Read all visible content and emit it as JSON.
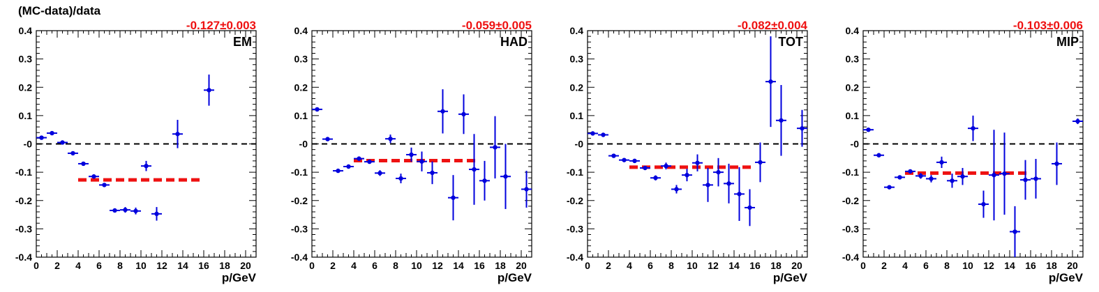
{
  "figure_title": "(MC-data)/data",
  "colors": {
    "data": "#0000dd",
    "fit": "#ee1111",
    "zero": "#000000",
    "fit_label": "#ee1111"
  },
  "chart_data": [
    {
      "type": "scatter",
      "label": "EM",
      "fit_text": "-0.127±0.003",
      "fit": {
        "value": -0.127,
        "x_range": [
          4,
          16
        ]
      },
      "xlabel": "p/GeV",
      "ylabel": "",
      "xlim": [
        0,
        21
      ],
      "ylim": [
        -0.4,
        0.4
      ],
      "x_ticks": [
        "0",
        "2",
        "4",
        "6",
        "8",
        "10",
        "12",
        "14",
        "16",
        "18",
        "20"
      ],
      "y_ticks": [
        "-0.4",
        "-0.3",
        "-0.2",
        "-0.1",
        "-0",
        "0.1",
        "0.2",
        "0.3",
        "0.4"
      ],
      "points": [
        {
          "x": 0.5,
          "y": 0.022,
          "err": 0.005
        },
        {
          "x": 1.5,
          "y": 0.038,
          "err": 0.005
        },
        {
          "x": 2.5,
          "y": 0.005,
          "err": 0.005
        },
        {
          "x": 3.5,
          "y": -0.033,
          "err": 0.005
        },
        {
          "x": 4.5,
          "y": -0.07,
          "err": 0.005
        },
        {
          "x": 5.5,
          "y": -0.115,
          "err": 0.006
        },
        {
          "x": 6.5,
          "y": -0.145,
          "err": 0.006
        },
        {
          "x": 7.5,
          "y": -0.235,
          "err": 0.007
        },
        {
          "x": 8.5,
          "y": -0.233,
          "err": 0.01
        },
        {
          "x": 9.5,
          "y": -0.237,
          "err": 0.012
        },
        {
          "x": 10.5,
          "y": -0.078,
          "err": 0.018
        },
        {
          "x": 11.5,
          "y": -0.247,
          "err": 0.024
        },
        {
          "x": 13.5,
          "y": 0.035,
          "err": 0.05
        },
        {
          "x": 16.5,
          "y": 0.19,
          "err": 0.055
        }
      ]
    },
    {
      "type": "scatter",
      "label": "HAD",
      "fit_text": "-0.059±0.005",
      "fit": {
        "value": -0.059,
        "x_range": [
          4,
          16
        ]
      },
      "xlabel": "p/GeV",
      "ylabel": "",
      "xlim": [
        0,
        21
      ],
      "ylim": [
        -0.4,
        0.4
      ],
      "x_ticks": [
        "0",
        "2",
        "4",
        "6",
        "8",
        "10",
        "12",
        "14",
        "16",
        "18",
        "20"
      ],
      "y_ticks": [
        "-0.4",
        "-0.3",
        "-0.2",
        "-0.1",
        "-0",
        "0.1",
        "0.2",
        "0.3",
        "0.4"
      ],
      "points": [
        {
          "x": 0.5,
          "y": 0.122,
          "err": 0.005
        },
        {
          "x": 1.5,
          "y": 0.017,
          "err": 0.005
        },
        {
          "x": 2.5,
          "y": -0.095,
          "err": 0.005
        },
        {
          "x": 3.5,
          "y": -0.08,
          "err": 0.005
        },
        {
          "x": 4.5,
          "y": -0.052,
          "err": 0.006
        },
        {
          "x": 5.5,
          "y": -0.063,
          "err": 0.007
        },
        {
          "x": 6.5,
          "y": -0.103,
          "err": 0.01
        },
        {
          "x": 7.5,
          "y": 0.018,
          "err": 0.015
        },
        {
          "x": 8.5,
          "y": -0.122,
          "err": 0.017
        },
        {
          "x": 9.5,
          "y": -0.038,
          "err": 0.025
        },
        {
          "x": 10.5,
          "y": -0.062,
          "err": 0.035
        },
        {
          "x": 11.5,
          "y": -0.102,
          "err": 0.04
        },
        {
          "x": 12.5,
          "y": 0.115,
          "err": 0.078
        },
        {
          "x": 13.5,
          "y": -0.19,
          "err": 0.08
        },
        {
          "x": 14.5,
          "y": 0.105,
          "err": 0.07
        },
        {
          "x": 15.5,
          "y": -0.09,
          "err": 0.125
        },
        {
          "x": 16.5,
          "y": -0.13,
          "err": 0.07
        },
        {
          "x": 17.5,
          "y": -0.012,
          "err": 0.11
        },
        {
          "x": 18.5,
          "y": -0.115,
          "err": 0.115
        },
        {
          "x": 20.5,
          "y": -0.16,
          "err": 0.065
        }
      ]
    },
    {
      "type": "scatter",
      "label": "TOT",
      "fit_text": "-0.082±0.004",
      "fit": {
        "value": -0.082,
        "x_range": [
          4,
          16
        ]
      },
      "xlabel": "p/GeV",
      "ylabel": "",
      "xlim": [
        0,
        21
      ],
      "ylim": [
        -0.4,
        0.4
      ],
      "x_ticks": [
        "0",
        "2",
        "4",
        "6",
        "8",
        "10",
        "12",
        "14",
        "16",
        "18",
        "20"
      ],
      "y_ticks": [
        "-0.4",
        "-0.3",
        "-0.2",
        "-0.1",
        "-0",
        "0.1",
        "0.2",
        "0.3",
        "0.4"
      ],
      "points": [
        {
          "x": 0.5,
          "y": 0.037,
          "err": 0.005
        },
        {
          "x": 1.5,
          "y": 0.032,
          "err": 0.005
        },
        {
          "x": 2.5,
          "y": -0.042,
          "err": 0.005
        },
        {
          "x": 3.5,
          "y": -0.057,
          "err": 0.005
        },
        {
          "x": 4.5,
          "y": -0.06,
          "err": 0.005
        },
        {
          "x": 5.5,
          "y": -0.085,
          "err": 0.006
        },
        {
          "x": 6.5,
          "y": -0.12,
          "err": 0.009
        },
        {
          "x": 7.5,
          "y": -0.078,
          "err": 0.012
        },
        {
          "x": 8.5,
          "y": -0.16,
          "err": 0.015
        },
        {
          "x": 9.5,
          "y": -0.11,
          "err": 0.022
        },
        {
          "x": 10.5,
          "y": -0.067,
          "err": 0.03
        },
        {
          "x": 11.5,
          "y": -0.145,
          "err": 0.06
        },
        {
          "x": 12.5,
          "y": -0.1,
          "err": 0.05
        },
        {
          "x": 13.5,
          "y": -0.14,
          "err": 0.07
        },
        {
          "x": 14.5,
          "y": -0.177,
          "err": 0.095
        },
        {
          "x": 15.5,
          "y": -0.225,
          "err": 0.065
        },
        {
          "x": 16.5,
          "y": -0.065,
          "err": 0.07
        },
        {
          "x": 17.5,
          "y": 0.22,
          "err": 0.16
        },
        {
          "x": 18.5,
          "y": 0.083,
          "err": 0.125
        },
        {
          "x": 20.5,
          "y": 0.055,
          "err": 0.065
        }
      ]
    },
    {
      "type": "scatter",
      "label": "MIP",
      "fit_text": "-0.103±0.006",
      "fit": {
        "value": -0.103,
        "x_range": [
          4,
          16
        ]
      },
      "xlabel": "p/GeV",
      "ylabel": "",
      "xlim": [
        0,
        21
      ],
      "ylim": [
        -0.4,
        0.4
      ],
      "x_ticks": [
        "0",
        "2",
        "4",
        "6",
        "8",
        "10",
        "12",
        "14",
        "16",
        "18",
        "20"
      ],
      "y_ticks": [
        "-0.4",
        "-0.3",
        "-0.2",
        "-0.1",
        "-0",
        "0.1",
        "0.2",
        "0.3",
        "0.4"
      ],
      "points": [
        {
          "x": 0.5,
          "y": 0.05,
          "err": 0.005
        },
        {
          "x": 1.5,
          "y": -0.04,
          "err": 0.005
        },
        {
          "x": 2.5,
          "y": -0.153,
          "err": 0.005
        },
        {
          "x": 3.5,
          "y": -0.118,
          "err": 0.005
        },
        {
          "x": 4.5,
          "y": -0.097,
          "err": 0.007
        },
        {
          "x": 5.5,
          "y": -0.113,
          "err": 0.01
        },
        {
          "x": 6.5,
          "y": -0.123,
          "err": 0.013
        },
        {
          "x": 7.5,
          "y": -0.065,
          "err": 0.02
        },
        {
          "x": 8.5,
          "y": -0.13,
          "err": 0.025
        },
        {
          "x": 9.5,
          "y": -0.115,
          "err": 0.03
        },
        {
          "x": 10.5,
          "y": 0.055,
          "err": 0.045
        },
        {
          "x": 11.5,
          "y": -0.213,
          "err": 0.048
        },
        {
          "x": 12.5,
          "y": -0.11,
          "err": 0.16
        },
        {
          "x": 13.5,
          "y": -0.105,
          "err": 0.145
        },
        {
          "x": 14.5,
          "y": -0.31,
          "err": 0.09
        },
        {
          "x": 15.5,
          "y": -0.127,
          "err": 0.07
        },
        {
          "x": 16.5,
          "y": -0.123,
          "err": 0.07
        },
        {
          "x": 18.5,
          "y": -0.07,
          "err": 0.075
        },
        {
          "x": 20.5,
          "y": 0.08,
          "err": 0.01
        }
      ]
    }
  ]
}
